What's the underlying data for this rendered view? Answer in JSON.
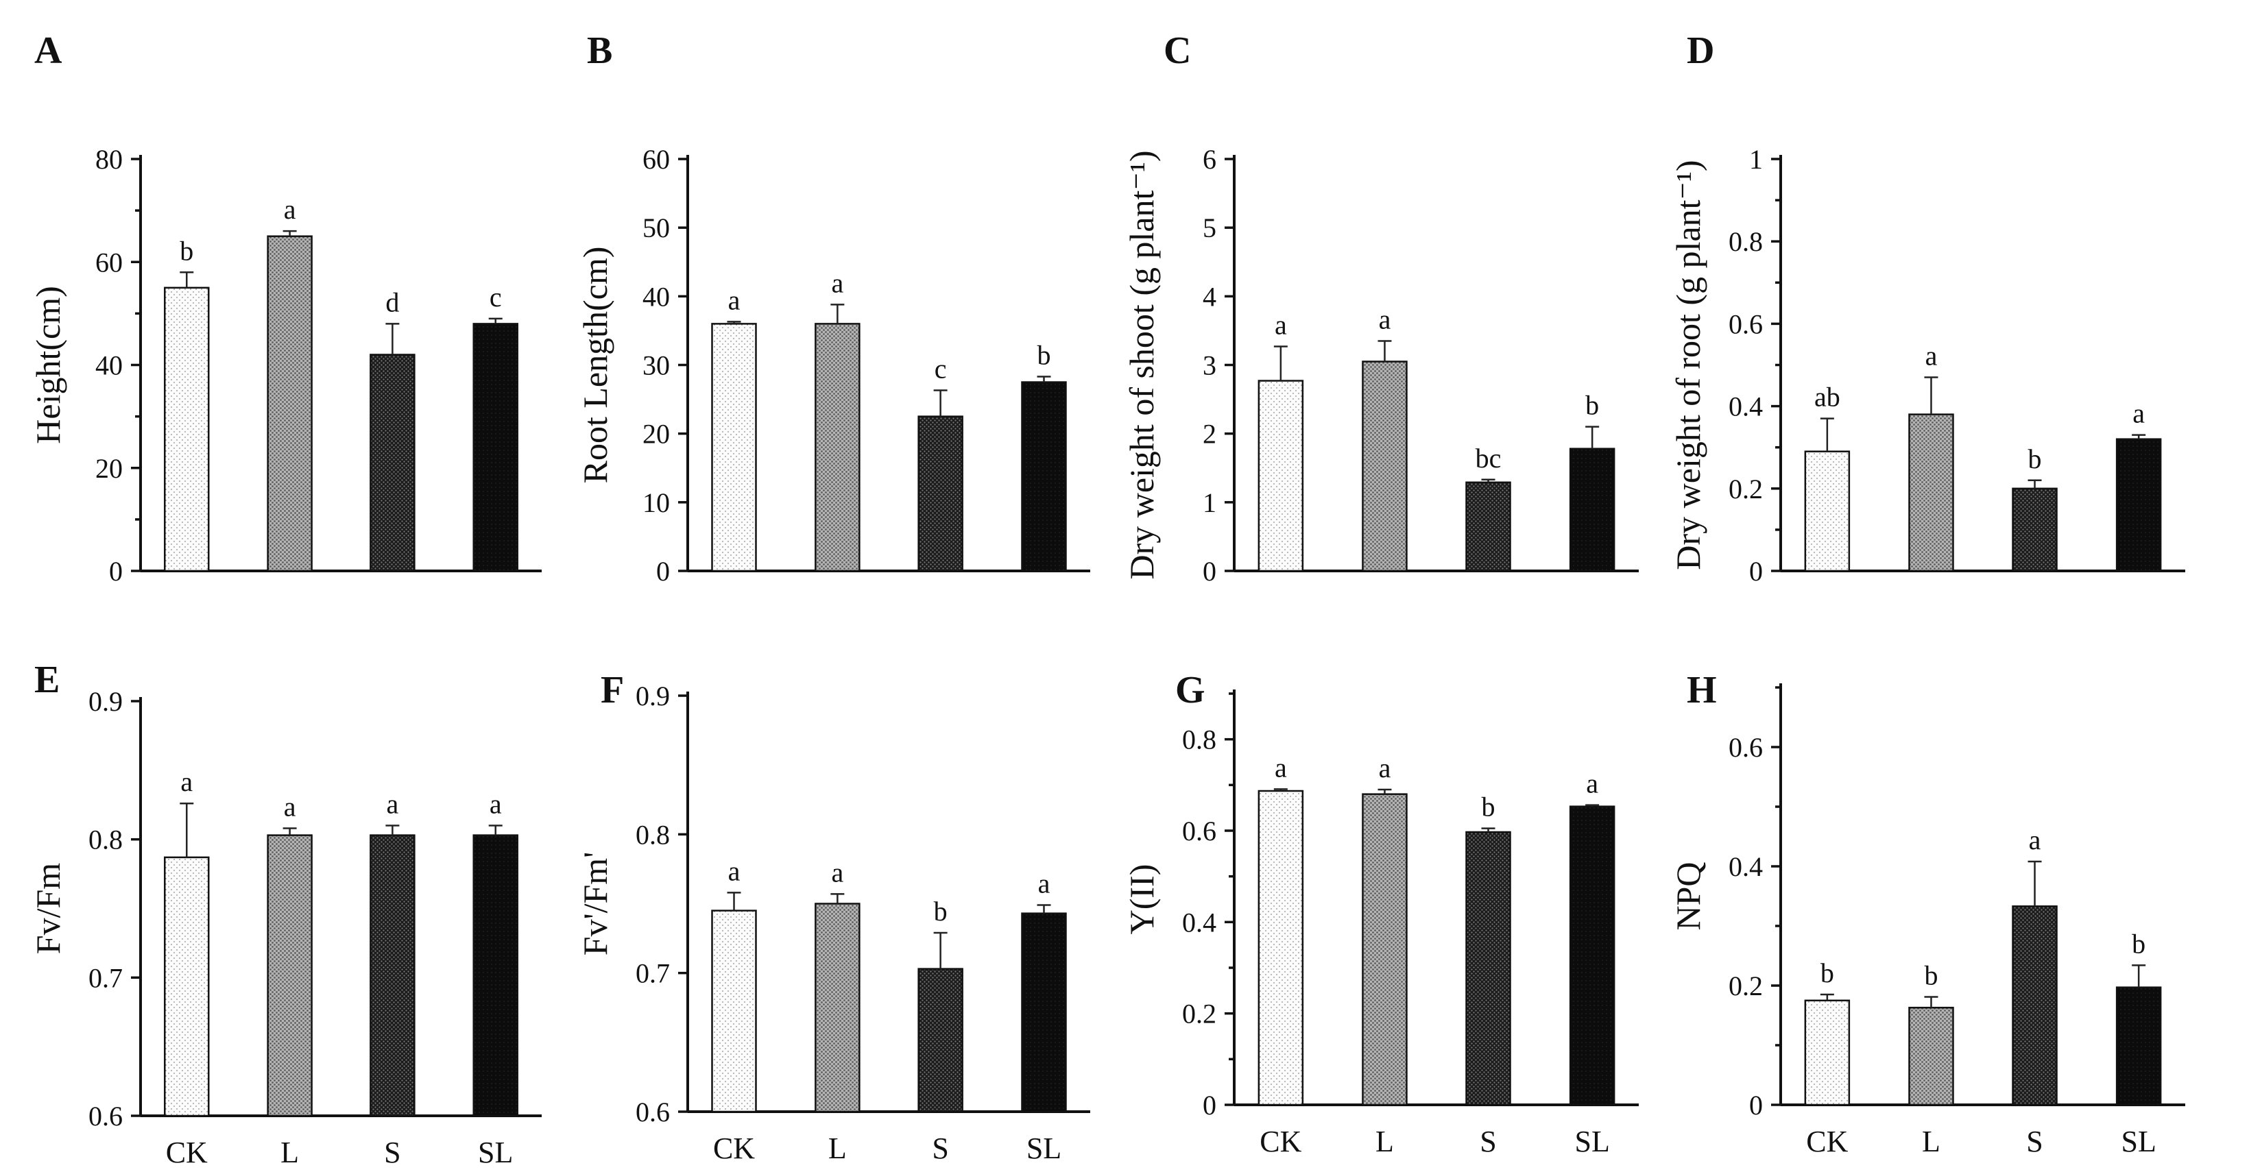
{
  "figure": {
    "categories": [
      "CK",
      "L",
      "S",
      "SL"
    ]
  },
  "fills": {
    "CK": "#f1f1f1",
    "L": "#9c9c9c",
    "S": "#2b2b2b",
    "SL": "#0e0e0e"
  },
  "chart_data": [
    {
      "panel": "A",
      "type": "bar",
      "ylabel": "Height(cm)",
      "ylim": [
        0,
        80
      ],
      "yticks": [
        "0",
        "20",
        "40",
        "60",
        "80"
      ],
      "yticks_values": [
        0,
        20,
        40,
        60,
        80
      ],
      "minor_step": 10,
      "show_xlabels": false,
      "categories": [
        "CK",
        "L",
        "S",
        "SL"
      ],
      "values": [
        55,
        65,
        42,
        48
      ],
      "errors": [
        3,
        1,
        6,
        1
      ],
      "letters": [
        "b",
        "a",
        "d",
        "c"
      ]
    },
    {
      "panel": "B",
      "type": "bar",
      "ylabel": "Root Length(cm)",
      "ylim": [
        0,
        60
      ],
      "yticks": [
        "0",
        "10",
        "20",
        "30",
        "40",
        "50",
        "60"
      ],
      "yticks_values": [
        0,
        10,
        20,
        30,
        40,
        50,
        60
      ],
      "minor_step": 0,
      "show_xlabels": false,
      "categories": [
        "CK",
        "L",
        "S",
        "SL"
      ],
      "values": [
        36,
        36,
        22.5,
        27.5
      ],
      "errors": [
        0.3,
        2.8,
        3.8,
        0.8
      ],
      "letters": [
        "a",
        "a",
        "c",
        "b"
      ]
    },
    {
      "panel": "C",
      "type": "bar",
      "ylabel": "Dry weight of shoot (g plant⁻¹)",
      "ylim": [
        0,
        6
      ],
      "yticks": [
        "0",
        "1",
        "2",
        "3",
        "4",
        "5",
        "6"
      ],
      "yticks_values": [
        0,
        1,
        2,
        3,
        4,
        5,
        6
      ],
      "minor_step": 0,
      "show_xlabels": false,
      "categories": [
        "CK",
        "L",
        "S",
        "SL"
      ],
      "values": [
        2.77,
        3.05,
        1.29,
        1.78
      ],
      "errors": [
        0.5,
        0.3,
        0.04,
        0.32
      ],
      "letters": [
        "a",
        "a",
        "bc",
        "b"
      ]
    },
    {
      "panel": "D",
      "type": "bar",
      "ylabel": "Dry weight of root (g plant⁻¹)",
      "ylim": [
        0,
        1
      ],
      "yticks": [
        "0",
        "0.2",
        "0.4",
        "0.6",
        "0.8",
        "1"
      ],
      "yticks_values": [
        0,
        0.2,
        0.4,
        0.6,
        0.8,
        1
      ],
      "minor_step": 0.1,
      "show_xlabels": false,
      "categories": [
        "CK",
        "L",
        "S",
        "SL"
      ],
      "values": [
        0.29,
        0.38,
        0.2,
        0.32
      ],
      "errors": [
        0.08,
        0.09,
        0.02,
        0.01
      ],
      "letters": [
        "ab",
        "a",
        "b",
        "a"
      ]
    },
    {
      "panel": "E",
      "type": "bar",
      "ylabel": "Fv/Fm",
      "ylim": [
        0.6,
        0.9
      ],
      "yticks": [
        "0.6",
        "0.7",
        "0.8",
        "0.9"
      ],
      "yticks_values": [
        0.6,
        0.7,
        0.8,
        0.9
      ],
      "minor_step": 0,
      "show_xlabels": true,
      "categories": [
        "CK",
        "L",
        "S",
        "SL"
      ],
      "values": [
        0.787,
        0.803,
        0.803,
        0.803
      ],
      "errors": [
        0.039,
        0.005,
        0.007,
        0.007
      ],
      "letters": [
        "a",
        "a",
        "a",
        "a"
      ]
    },
    {
      "panel": "F",
      "type": "bar",
      "ylabel": "Fv'/Fm'",
      "ylim": [
        0.6,
        0.9
      ],
      "yticks": [
        "0.6",
        "0.7",
        "0.8",
        "0.9"
      ],
      "yticks_values": [
        0.6,
        0.7,
        0.8,
        0.9
      ],
      "minor_step": 0,
      "show_xlabels": true,
      "categories": [
        "CK",
        "L",
        "S",
        "SL"
      ],
      "values": [
        0.745,
        0.75,
        0.703,
        0.743
      ],
      "errors": [
        0.013,
        0.007,
        0.026,
        0.006
      ],
      "letters": [
        "a",
        "a",
        "b",
        "a"
      ]
    },
    {
      "panel": "G",
      "type": "bar",
      "ylabel": "Y(II)",
      "ylim": [
        0,
        0.9
      ],
      "yticks": [
        "0",
        "0.2",
        "0.4",
        "0.6",
        "0.8"
      ],
      "yticks_values": [
        0,
        0.2,
        0.4,
        0.6,
        0.8
      ],
      "minor_step": 0.1,
      "show_xlabels": true,
      "categories": [
        "CK",
        "L",
        "S",
        "SL"
      ],
      "values": [
        0.687,
        0.68,
        0.597,
        0.653
      ],
      "errors": [
        0.004,
        0.01,
        0.008,
        0.003
      ],
      "letters": [
        "a",
        "a",
        "b",
        "a"
      ]
    },
    {
      "panel": "H",
      "type": "bar",
      "ylabel": "NPQ",
      "ylim": [
        0,
        0.7
      ],
      "yticks": [
        "0",
        "0.2",
        "0.4",
        "0.6"
      ],
      "yticks_values": [
        0,
        0.2,
        0.4,
        0.6
      ],
      "minor_step": 0.1,
      "show_xlabels": true,
      "categories": [
        "CK",
        "L",
        "S",
        "SL"
      ],
      "values": [
        0.175,
        0.163,
        0.333,
        0.197
      ],
      "errors": [
        0.01,
        0.018,
        0.075,
        0.037
      ],
      "letters": [
        "b",
        "b",
        "a",
        "b"
      ]
    }
  ]
}
